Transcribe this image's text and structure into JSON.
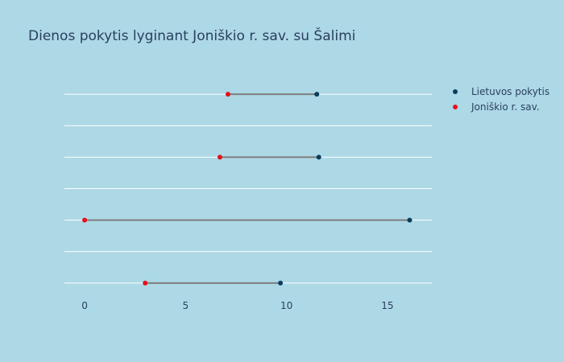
{
  "chart_data": {
    "type": "dumbbell",
    "title": "Dienos pokytis lyginant Joniškio r. sav. su Šalimi",
    "xlabel": "",
    "ylabel": "",
    "xlim": [
      -1.0,
      17.2
    ],
    "xticks": [
      0,
      5,
      10,
      15
    ],
    "xtick_labels": [
      "0",
      "5",
      "10",
      "15"
    ],
    "grid": true,
    "legend_position": "top-right",
    "rows": 4,
    "series": [
      {
        "name": "Lietuvos pokytis",
        "color": "#0b3d5c",
        "values": [
          11.5,
          11.6,
          16.1,
          9.7
        ]
      },
      {
        "name": "Joniškio r. sav.",
        "color": "#e8101b",
        "values": [
          7.1,
          6.7,
          0.0,
          3.0
        ]
      }
    ],
    "connector_color": "#7f7f7f",
    "background_color": "#add8e6",
    "gridline_color": "#ffffff"
  }
}
